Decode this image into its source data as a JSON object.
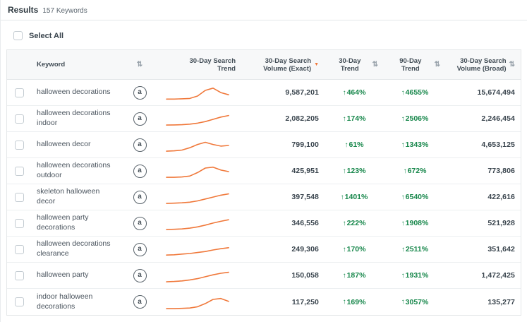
{
  "header": {
    "title": "Results",
    "count": "157 Keywords"
  },
  "select_all": {
    "label": "Select All"
  },
  "columns": {
    "keyword": "Keyword",
    "search_trend": "30-Day Search Trend",
    "volume_exact": "30-Day Search Volume (Exact)",
    "trend_30": "30-Day Trend",
    "trend_90": "90-Day Trend",
    "volume_broad": "30-Day Search Volume (Broad)"
  },
  "colors": {
    "sparkline": "#f0783a",
    "positive": "#17874b",
    "sort_active": "#f0783a"
  },
  "chart_data": {
    "type": "table",
    "title": "Results 157 Keywords",
    "columns": [
      "Keyword",
      "30-Day Search Trend",
      "30-Day Search Volume (Exact)",
      "30-Day Trend",
      "90-Day Trend",
      "30-Day Search Volume (Broad)"
    ],
    "rows": [
      [
        "halloween decorations",
        "sparkline",
        "9,587,201",
        "+464%",
        "+4655%",
        "15,674,494"
      ],
      [
        "halloween decorations indoor",
        "sparkline",
        "2,082,205",
        "+174%",
        "+2506%",
        "2,246,454"
      ],
      [
        "halloween decor",
        "sparkline",
        "799,100",
        "+61%",
        "+1343%",
        "4,653,125"
      ],
      [
        "halloween decorations outdoor",
        "sparkline",
        "425,951",
        "+123%",
        "+672%",
        "773,806"
      ],
      [
        "skeleton halloween decor",
        "sparkline",
        "397,548",
        "+1401%",
        "+6540%",
        "422,616"
      ],
      [
        "halloween party decorations",
        "sparkline",
        "346,556",
        "+222%",
        "+1908%",
        "521,928"
      ],
      [
        "halloween decorations clearance",
        "sparkline",
        "249,306",
        "+170%",
        "+2511%",
        "351,642"
      ],
      [
        "halloween party",
        "sparkline",
        "150,058",
        "+187%",
        "+1931%",
        "1,472,425"
      ],
      [
        "indoor halloween decorations",
        "sparkline",
        "117,250",
        "+169%",
        "+3057%",
        "135,277"
      ]
    ]
  },
  "rows": [
    {
      "keyword": "halloween decorations",
      "exact_volume": "9,587,201",
      "trend_30": "464%",
      "trend_90": "4655%",
      "broad_volume": "15,674,494",
      "trend_points": [
        4,
        4,
        6,
        9,
        28,
        72,
        90,
        55,
        38
      ]
    },
    {
      "keyword": "halloween decorations indoor",
      "exact_volume": "2,082,205",
      "trend_30": "174%",
      "trend_90": "2506%",
      "broad_volume": "2,246,454",
      "trend_points": [
        5,
        6,
        8,
        12,
        20,
        32,
        50,
        68,
        80
      ]
    },
    {
      "keyword": "halloween decor",
      "exact_volume": "799,100",
      "trend_30": "61%",
      "trend_90": "1343%",
      "broad_volume": "4,653,125",
      "trend_points": [
        5,
        8,
        14,
        32,
        58,
        75,
        58,
        45,
        50
      ]
    },
    {
      "keyword": "halloween decorations outdoor",
      "exact_volume": "425,951",
      "trend_30": "123%",
      "trend_90": "672%",
      "broad_volume": "773,806",
      "trend_points": [
        5,
        5,
        8,
        15,
        42,
        78,
        85,
        62,
        50
      ]
    },
    {
      "keyword": "skeleton halloween decor",
      "exact_volume": "397,548",
      "trend_30": "1401%",
      "trend_90": "6540%",
      "broad_volume": "422,616",
      "trend_points": [
        5,
        7,
        10,
        15,
        25,
        40,
        55,
        70,
        80
      ]
    },
    {
      "keyword": "halloween party decorations",
      "exact_volume": "346,556",
      "trend_30": "222%",
      "trend_90": "1908%",
      "broad_volume": "521,928",
      "trend_points": [
        5,
        7,
        10,
        16,
        26,
        40,
        56,
        70,
        82
      ]
    },
    {
      "keyword": "halloween decorations clearance",
      "exact_volume": "249,306",
      "trend_30": "170%",
      "trend_90": "2511%",
      "broad_volume": "351,642",
      "trend_points": [
        10,
        12,
        18,
        22,
        30,
        38,
        50,
        60,
        68
      ]
    },
    {
      "keyword": "halloween party",
      "exact_volume": "150,058",
      "trend_30": "187%",
      "trend_90": "1931%",
      "broad_volume": "1,472,425",
      "trend_points": [
        5,
        8,
        12,
        20,
        30,
        45,
        60,
        72,
        80
      ]
    },
    {
      "keyword": "indoor halloween decorations",
      "exact_volume": "117,250",
      "trend_30": "169%",
      "trend_90": "3057%",
      "broad_volume": "135,277",
      "trend_points": [
        5,
        5,
        7,
        10,
        20,
        45,
        78,
        85,
        62
      ]
    }
  ]
}
